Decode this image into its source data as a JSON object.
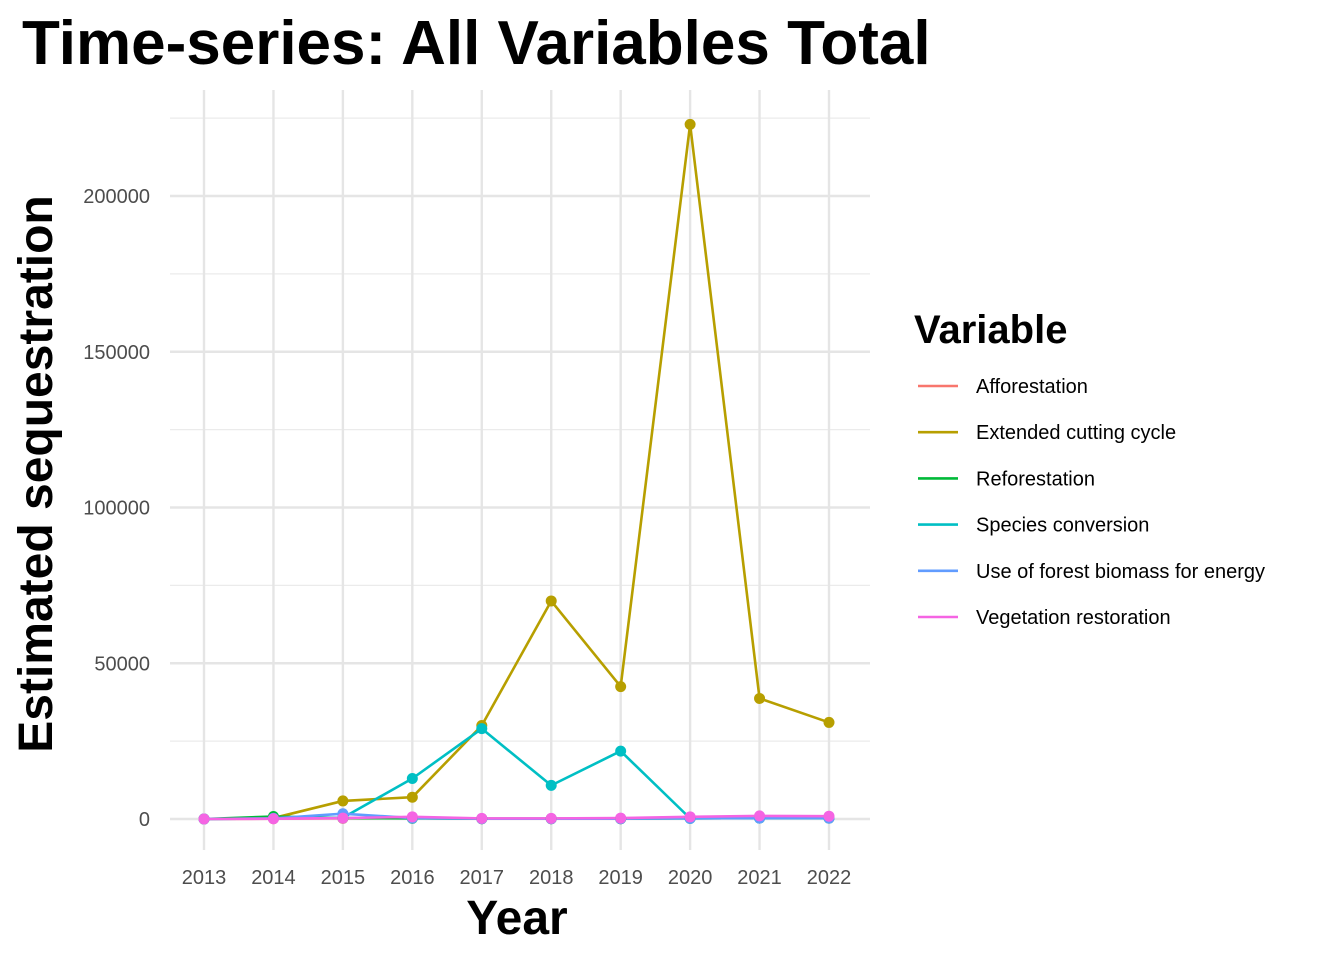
{
  "chart_data": {
    "type": "line",
    "title": "Time-series: All Variables Total",
    "xlabel": "Year",
    "ylabel": "Estimated sequestration",
    "x": [
      2013,
      2014,
      2015,
      2016,
      2017,
      2018,
      2019,
      2020,
      2021,
      2022
    ],
    "ylim": [
      -8000,
      226000
    ],
    "y_ticks": [
      0,
      50000,
      100000,
      150000,
      200000
    ],
    "y_tick_labels": [
      "0",
      "50000",
      "100000",
      "150000",
      "200000"
    ],
    "grid": true,
    "legend": {
      "title": "Variable",
      "position": "right"
    },
    "series": [
      {
        "name": "Afforestation",
        "color": "#F8766D",
        "values": [
          0,
          100,
          200,
          300,
          100,
          100,
          100,
          300,
          400,
          300
        ]
      },
      {
        "name": "Extended cutting cycle",
        "color": "#B79F00",
        "values": [
          0,
          300,
          5800,
          7000,
          30000,
          70000,
          42500,
          223000,
          38700,
          31000
        ]
      },
      {
        "name": "Reforestation",
        "color": "#00BA38",
        "values": [
          0,
          800,
          300,
          200,
          100,
          100,
          100,
          200,
          300,
          300
        ]
      },
      {
        "name": "Species conversion",
        "color": "#00BFC4",
        "values": [
          0,
          200,
          400,
          13000,
          29000,
          10800,
          21800,
          200,
          300,
          300
        ]
      },
      {
        "name": "Use of forest biomass for energy",
        "color": "#619CFF",
        "values": [
          0,
          200,
          1700,
          300,
          100,
          100,
          100,
          200,
          300,
          300
        ]
      },
      {
        "name": "Vegetation restoration",
        "color": "#F564E3",
        "values": [
          0,
          100,
          300,
          700,
          200,
          200,
          300,
          700,
          1000,
          900
        ]
      }
    ]
  }
}
